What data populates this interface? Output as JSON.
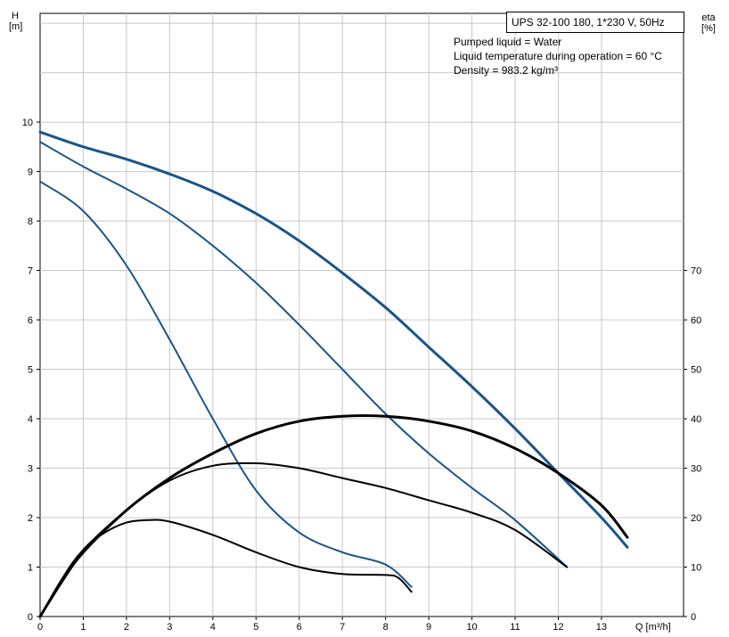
{
  "chart_data": {
    "type": "line",
    "model": "UPS 32-100  180, 1*230 V, 50Hz",
    "notes": [
      "Pumped liquid = Water",
      "Liquid temperature during operation = 60 °C",
      "Density = 983.2 kg/m³"
    ],
    "left_axis": {
      "label": "H",
      "unit": "[m]",
      "ticks": [
        0,
        1,
        2,
        3,
        4,
        5,
        6,
        7,
        8,
        9,
        10
      ],
      "range": [
        0,
        12.2
      ]
    },
    "right_axis": {
      "label": "eta",
      "unit": "[%]",
      "ticks": [
        0,
        10,
        20,
        30,
        40,
        50,
        60,
        70
      ],
      "range": [
        0,
        122
      ]
    },
    "x_axis": {
      "label": "Q [m³/h]",
      "ticks": [
        0,
        1,
        2,
        3,
        4,
        5,
        6,
        7,
        8,
        9,
        10,
        11,
        12,
        13
      ],
      "range": [
        0,
        14.9
      ]
    },
    "grid": true,
    "series": [
      {
        "axis": "H",
        "color": "#1b5489",
        "width": 3,
        "points": [
          [
            0,
            9.8
          ],
          [
            1,
            9.5
          ],
          [
            2,
            9.25
          ],
          [
            3,
            8.95
          ],
          [
            4,
            8.6
          ],
          [
            5,
            8.15
          ],
          [
            6,
            7.6
          ],
          [
            7,
            6.95
          ],
          [
            8,
            6.25
          ],
          [
            9,
            5.45
          ],
          [
            10,
            4.65
          ],
          [
            11,
            3.8
          ],
          [
            12,
            2.9
          ],
          [
            13,
            2.0
          ],
          [
            13.6,
            1.4
          ]
        ]
      },
      {
        "axis": "H",
        "color": "#1b5489",
        "width": 2,
        "points": [
          [
            0,
            9.6
          ],
          [
            1,
            9.1
          ],
          [
            2,
            8.65
          ],
          [
            3,
            8.15
          ],
          [
            4,
            7.5
          ],
          [
            5,
            6.75
          ],
          [
            6,
            5.9
          ],
          [
            7,
            5.0
          ],
          [
            8,
            4.1
          ],
          [
            9,
            3.3
          ],
          [
            10,
            2.6
          ],
          [
            11,
            1.95
          ],
          [
            12.2,
            1.0
          ]
        ]
      },
      {
        "axis": "H",
        "color": "#1b5489",
        "width": 2,
        "points": [
          [
            0,
            8.8
          ],
          [
            1,
            8.2
          ],
          [
            2,
            7.1
          ],
          [
            3,
            5.6
          ],
          [
            4,
            4.0
          ],
          [
            5,
            2.55
          ],
          [
            6,
            1.7
          ],
          [
            7,
            1.3
          ],
          [
            8,
            1.05
          ],
          [
            8.6,
            0.6
          ]
        ]
      },
      {
        "axis": "eta",
        "color": "#000000",
        "width": 3,
        "points": [
          [
            0,
            0
          ],
          [
            0.5,
            7
          ],
          [
            1,
            13
          ],
          [
            2,
            21.5
          ],
          [
            3,
            28
          ],
          [
            4,
            33
          ],
          [
            5,
            37
          ],
          [
            6,
            39.5
          ],
          [
            7,
            40.5
          ],
          [
            8,
            40.5
          ],
          [
            9,
            39.5
          ],
          [
            10,
            37.5
          ],
          [
            11,
            34
          ],
          [
            12,
            29
          ],
          [
            13,
            22.5
          ],
          [
            13.6,
            16
          ]
        ]
      },
      {
        "axis": "eta",
        "color": "#000000",
        "width": 2,
        "points": [
          [
            0,
            0
          ],
          [
            0.5,
            7.5
          ],
          [
            1,
            13.5
          ],
          [
            2,
            21.5
          ],
          [
            3,
            27.5
          ],
          [
            4,
            30.5
          ],
          [
            5,
            31
          ],
          [
            6,
            30
          ],
          [
            7,
            28
          ],
          [
            8,
            26
          ],
          [
            9,
            23.5
          ],
          [
            10,
            21
          ],
          [
            11,
            17.5
          ],
          [
            12.2,
            10
          ]
        ]
      },
      {
        "axis": "eta",
        "color": "#000000",
        "width": 2,
        "points": [
          [
            0,
            0
          ],
          [
            0.5,
            7
          ],
          [
            1,
            13.5
          ],
          [
            1.5,
            17
          ],
          [
            2,
            19
          ],
          [
            2.5,
            19.5
          ],
          [
            3,
            19.2
          ],
          [
            4,
            16.5
          ],
          [
            5,
            13
          ],
          [
            6,
            10
          ],
          [
            7,
            8.6
          ],
          [
            8,
            8.4
          ],
          [
            8.3,
            7.8
          ],
          [
            8.6,
            5
          ]
        ]
      }
    ]
  }
}
